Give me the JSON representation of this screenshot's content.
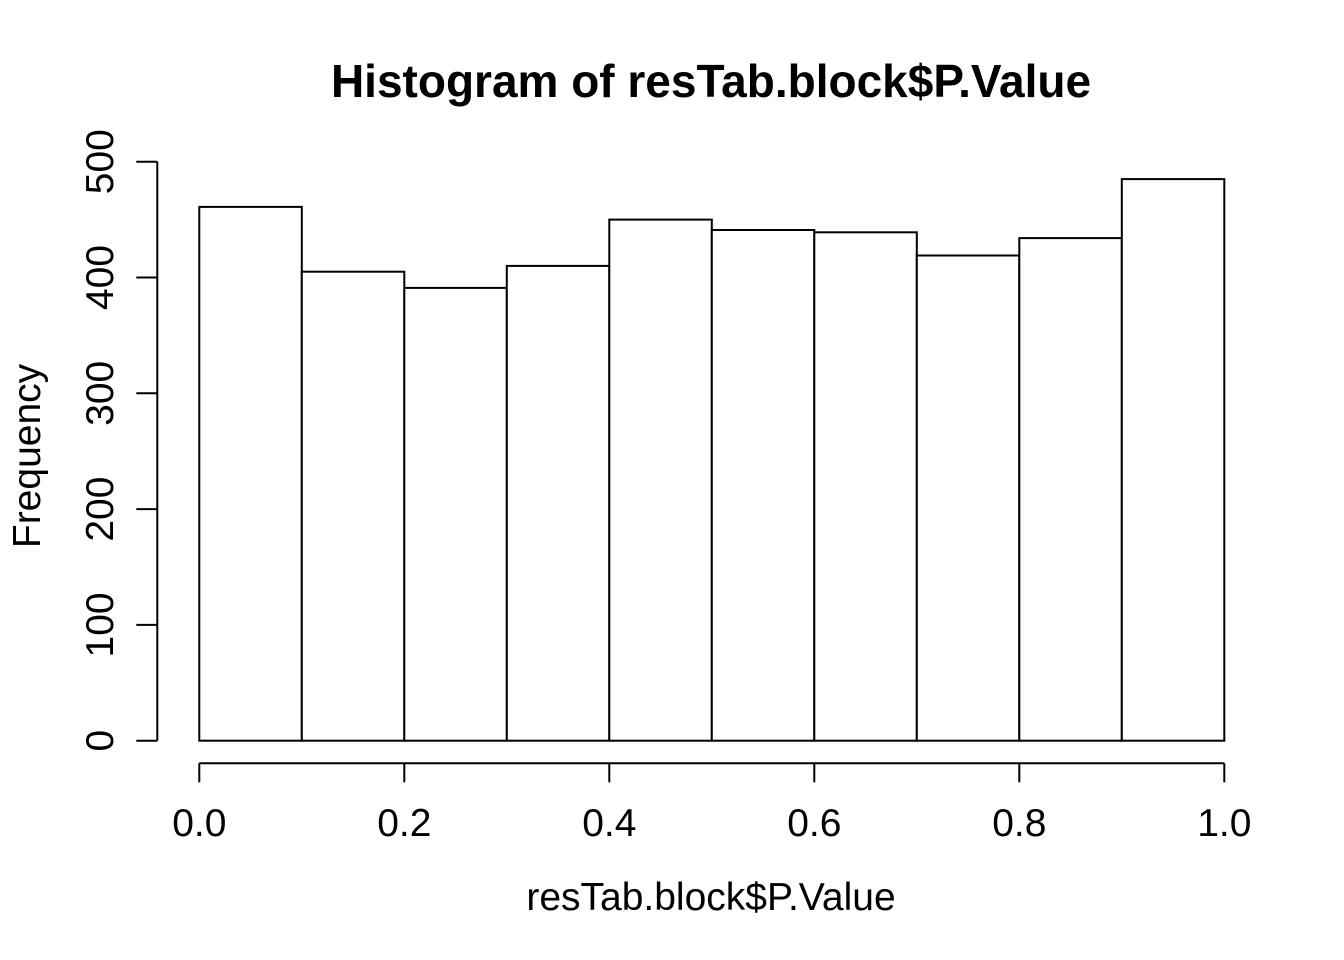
{
  "chart_data": {
    "type": "bar",
    "subtype": "histogram",
    "title": "Histogram of resTab.block$P.Value",
    "xlabel": "resTab.block$P.Value",
    "ylabel": "Frequency",
    "bin_edges": [
      0.0,
      0.1,
      0.2,
      0.3,
      0.4,
      0.5,
      0.6,
      0.7,
      0.8,
      0.9,
      1.0
    ],
    "counts": [
      461,
      405,
      391,
      410,
      450,
      441,
      439,
      419,
      434,
      485
    ],
    "xlim": [
      0.0,
      1.0
    ],
    "ylim": [
      0,
      500
    ],
    "x_tick_values": [
      0.0,
      0.2,
      0.4,
      0.6,
      0.8,
      1.0
    ],
    "x_tick_labels": [
      "0.0",
      "0.2",
      "0.4",
      "0.6",
      "0.8",
      "1.0"
    ],
    "y_tick_values": [
      0,
      100,
      200,
      300,
      400,
      500
    ],
    "y_tick_labels": [
      "0",
      "100",
      "200",
      "300",
      "400",
      "500"
    ],
    "grid": false,
    "legend": false,
    "bar_fill": "#ffffff",
    "bar_border": "#000000",
    "axis_color": "#000000",
    "background": "#ffffff"
  }
}
